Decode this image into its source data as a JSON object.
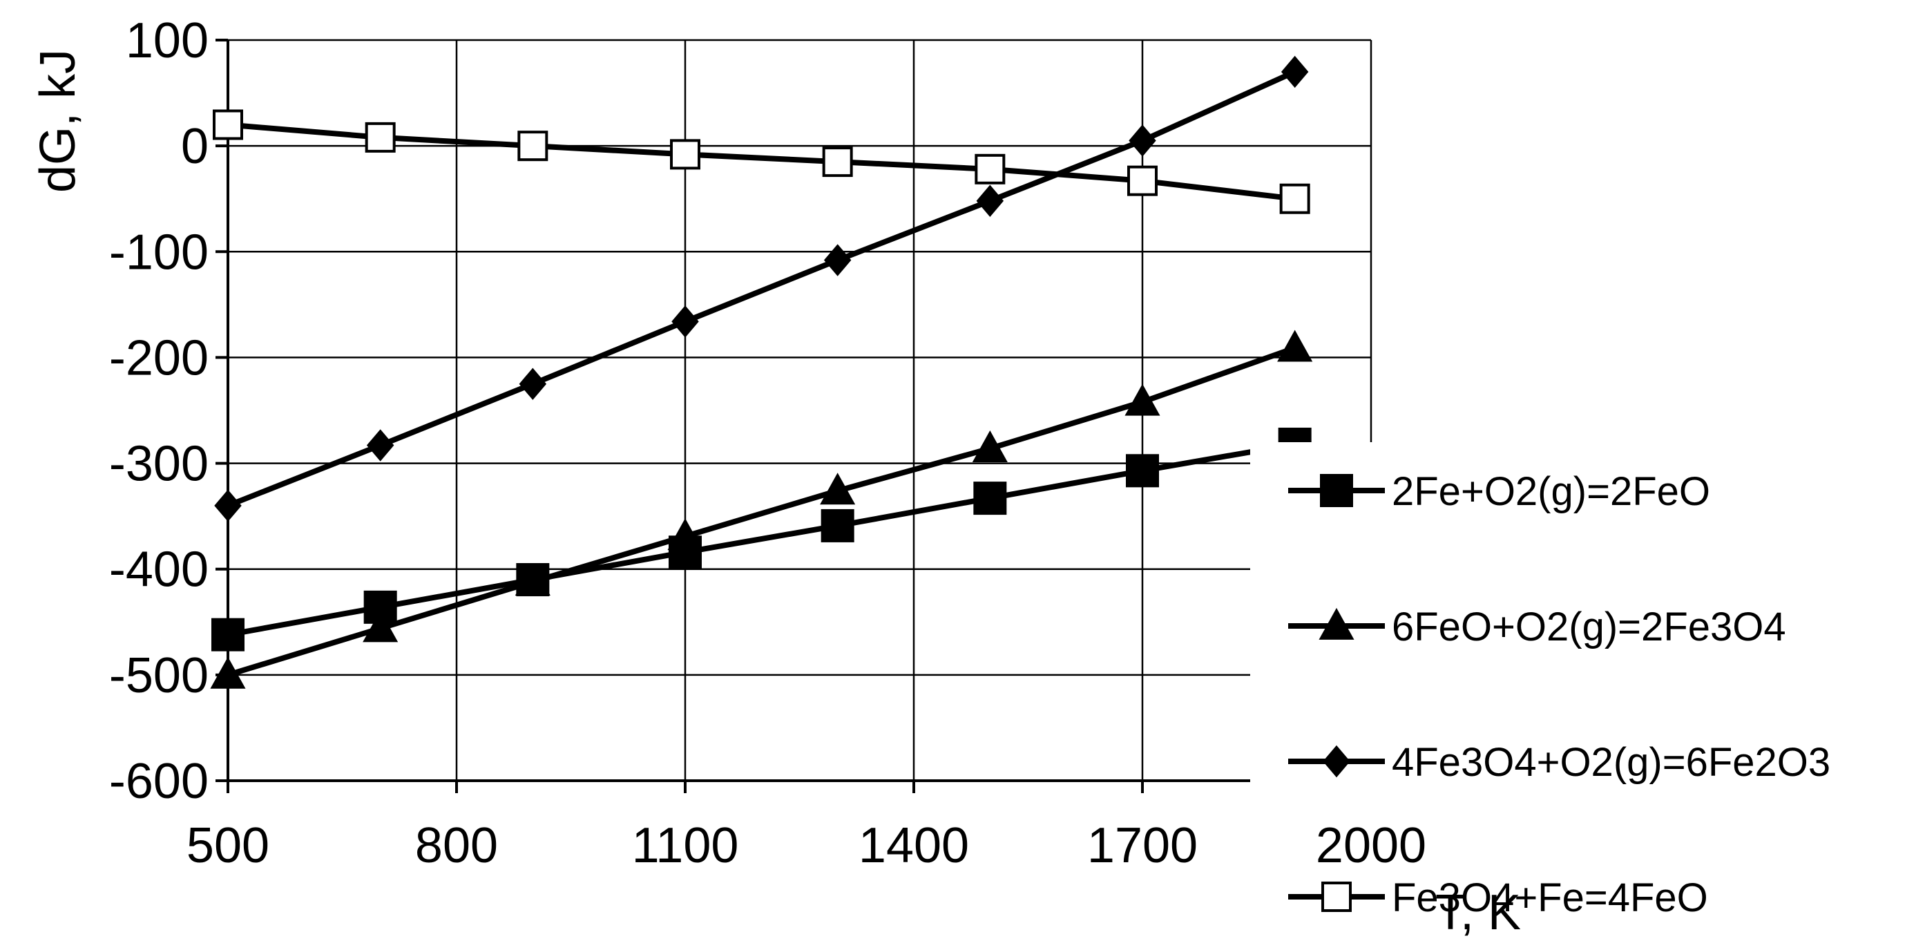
{
  "chart_data": {
    "type": "line",
    "title": "",
    "xlabel": "T, K",
    "ylabel": "dG, kJ",
    "xlim": [
      500,
      2000
    ],
    "ylim": [
      -600,
      100
    ],
    "x_ticks": [
      500,
      800,
      1100,
      1400,
      1700,
      2000
    ],
    "y_ticks": [
      100,
      0,
      -100,
      -200,
      -300,
      -400,
      -500,
      -600
    ],
    "grid": true,
    "legend_position": "right",
    "x": [
      500,
      700,
      900,
      1100,
      1300,
      1500,
      1700,
      1900
    ],
    "series": [
      {
        "name": "2Fe+O2(g)=2FeO",
        "marker": "filled-square",
        "color": "#000000",
        "values": [
          -462,
          -436,
          -410,
          -384,
          -359,
          -333,
          -307,
          -282
        ]
      },
      {
        "name": "6FeO+O2(g)=2Fe3O4",
        "marker": "filled-triangle",
        "color": "#000000",
        "values": [
          -500,
          -456,
          -412,
          -369,
          -326,
          -286,
          -242,
          -191
        ]
      },
      {
        "name": "4Fe3O4+O2(g)=6Fe2O3",
        "marker": "filled-diamond",
        "color": "#000000",
        "values": [
          -340,
          -283,
          -225,
          -166,
          -108,
          -52,
          5,
          70
        ]
      },
      {
        "name": "Fe3O4+Fe=4FeO",
        "marker": "open-square",
        "color": "#000000",
        "values": [
          20,
          8,
          0,
          -8,
          -15,
          -22,
          -33,
          -50
        ]
      }
    ]
  }
}
